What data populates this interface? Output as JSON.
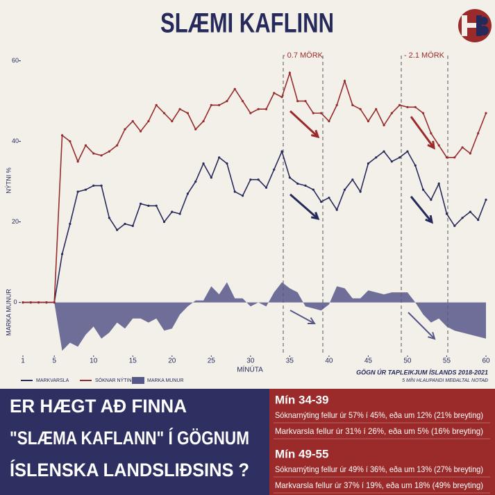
{
  "chart_data": {
    "type": "line",
    "title": "SLÆMI KAFLINN",
    "x_label": "MÍNÚTA",
    "y_label": "NÝTNI %",
    "y_label_lower": "MARKA MUNUR",
    "source": "GÖGN ÚR TAPLEIKJUM ÍSLANDS 2018-2021",
    "source_note": "5 MÍN HLAUPANDI MEÐALTAL NOTAÐ",
    "annotations": [
      "- 0.7 MÖRK",
      "- 2.1 MÖRK"
    ],
    "x": [
      1,
      2,
      3,
      4,
      5,
      6,
      7,
      8,
      9,
      10,
      11,
      12,
      13,
      14,
      15,
      16,
      17,
      18,
      19,
      20,
      21,
      22,
      23,
      24,
      25,
      26,
      27,
      28,
      29,
      30,
      31,
      32,
      33,
      34,
      35,
      36,
      37,
      38,
      39,
      40,
      41,
      42,
      43,
      44,
      45,
      46,
      47,
      48,
      49,
      50,
      51,
      52,
      53,
      54,
      55,
      56,
      57,
      58,
      59,
      60
    ],
    "xlim": [
      1,
      60
    ],
    "xticks": [
      1,
      5,
      10,
      15,
      20,
      25,
      30,
      35,
      40,
      45,
      50,
      55,
      60
    ],
    "ylim": [
      -13,
      62
    ],
    "yticks": [
      0,
      20,
      40,
      60
    ],
    "grid": false,
    "series": [
      {
        "name": "MARKVARSLA",
        "color": "#262a5a",
        "style": "line",
        "values": [
          0,
          0,
          0,
          0,
          0,
          12,
          19.5,
          27.5,
          28,
          29,
          29,
          21,
          18,
          19.5,
          19,
          24.5,
          24,
          24,
          20,
          22.5,
          22,
          27,
          30,
          34.5,
          31,
          36,
          34.5,
          27.5,
          26.5,
          30.5,
          30.5,
          28.5,
          33,
          37.5,
          31,
          29.5,
          29,
          28,
          25,
          26,
          23,
          28,
          30.5,
          27.5,
          34.5,
          36,
          37.5,
          35,
          36,
          37.5,
          34,
          28,
          25.5,
          29.5,
          22,
          19,
          21,
          22.5,
          20.5,
          25.5
        ]
      },
      {
        "name": "SÓKNAR NÝTING",
        "color": "#962b2b",
        "style": "line",
        "values": [
          0,
          0,
          0,
          0,
          0,
          41.5,
          40,
          35,
          39,
          37,
          36.5,
          37.5,
          39,
          43,
          45,
          42.5,
          45,
          49,
          47,
          45,
          48,
          47,
          43,
          45,
          49,
          49,
          50,
          53,
          50,
          47,
          48,
          48,
          52,
          51,
          57,
          50,
          50,
          47,
          47,
          45,
          49,
          55,
          49,
          48,
          45,
          48,
          44,
          47,
          49,
          48.5,
          48.5,
          47,
          42,
          39,
          36,
          36,
          38.5,
          37,
          42,
          47
        ]
      },
      {
        "name": "MARKA MUNUR",
        "color": "#565789",
        "style": "area",
        "values": [
          0,
          0,
          0,
          0,
          0,
          -12,
          -10,
          -11,
          -8,
          -6,
          -9,
          -7.5,
          -5,
          -6.5,
          -4,
          -4,
          -5,
          -4,
          -7,
          -6.5,
          -3,
          -1,
          0.5,
          0.5,
          4,
          2,
          5,
          1,
          1,
          -1,
          0,
          -1,
          2.5,
          5,
          3.5,
          2.5,
          -1,
          -1.5,
          -2,
          -0.5,
          4,
          3.5,
          1,
          1,
          3,
          2.5,
          2,
          2.5,
          2.5,
          2.5,
          0,
          -3,
          -5,
          -4,
          -6,
          -7,
          -7.5,
          -8,
          -8.5,
          -9
        ]
      }
    ]
  },
  "panel": {
    "question": [
      "ER HÆGT AÐ FINNA",
      "\"SLÆMA KAFLANN\" Í GÖGNUM",
      "ÍSLENSKA LANDSLIÐSINS ?"
    ],
    "sections": [
      {
        "heading": "Mín 34-39",
        "lines": [
          "Sóknarnýting fellur úr 57% í 45%, eða um 12% (21% breyting)",
          "Markvarsla fellur úr 31% í 26%, eða um 5% (16% breyting)"
        ]
      },
      {
        "heading": "Mín 49-55",
        "lines": [
          "Sóknarnýting fellur úr 49% í 36%, eða um 13% (27% breyting)",
          "Markvarsla fellur úr 37% í 19%, eða um 18% (49% breyting)"
        ]
      }
    ]
  }
}
